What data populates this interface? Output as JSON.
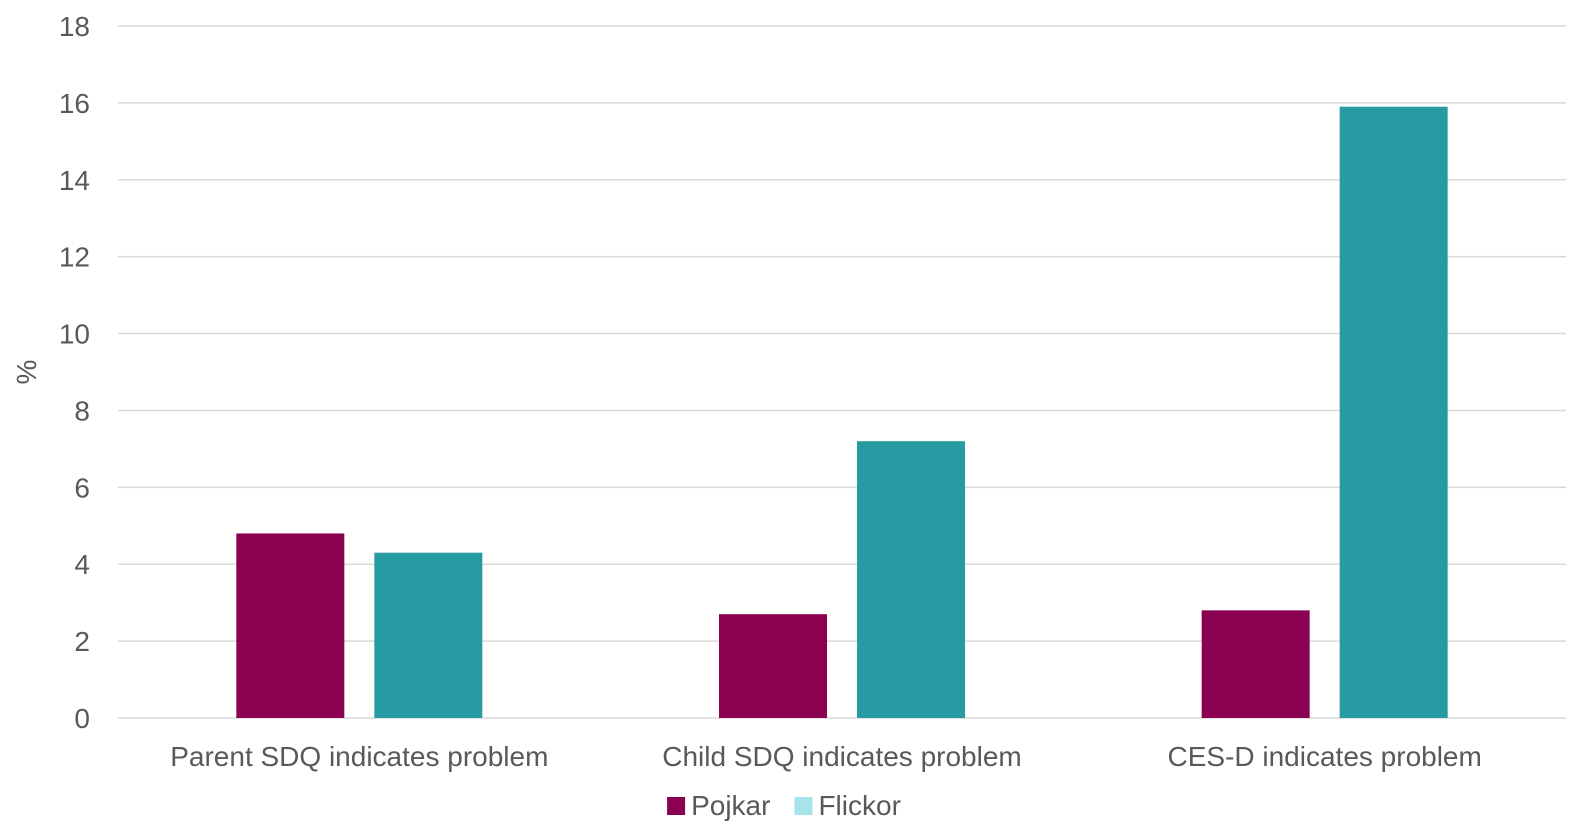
{
  "chart_data": {
    "type": "bar",
    "title": "",
    "xlabel": "",
    "ylabel": "%",
    "ylim": [
      0,
      18
    ],
    "ytick_step": 2,
    "yticks": [
      "0",
      "2",
      "4",
      "6",
      "8",
      "10",
      "12",
      "14",
      "16",
      "18"
    ],
    "grid": true,
    "legend_position": "bottom",
    "categories": [
      "Parent SDQ indicates problem",
      "Child SDQ indicates problem",
      "CES-D indicates problem"
    ],
    "series": [
      {
        "name": "Pojkar",
        "color": "#8b0051",
        "values": [
          4.8,
          2.7,
          2.8
        ]
      },
      {
        "name": "Flickor",
        "color": "#269ba2",
        "legend_color": "#a6e4ea",
        "values": [
          4.3,
          7.2,
          15.9
        ]
      }
    ]
  }
}
